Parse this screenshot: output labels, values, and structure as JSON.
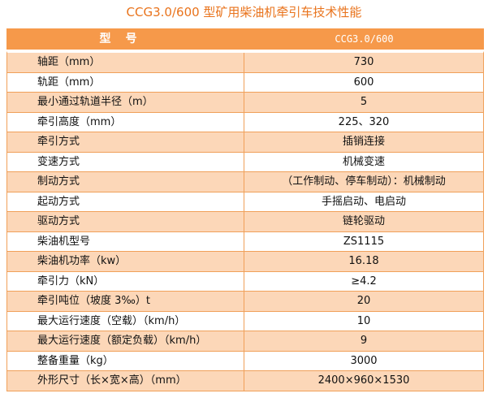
{
  "title": "CCG3.0/600 型矿用柴油机牵引车技术性能",
  "header": {
    "label": "型号",
    "value": "CCG3.0/600"
  },
  "colors": {
    "title": "#e9731c",
    "header_bg": "#f6994a",
    "row_alt": "#fcd7b8",
    "border": "#f0a059"
  },
  "rows": [
    {
      "label": "轴距（mm）",
      "value": "730"
    },
    {
      "label": "轨距（mm）",
      "value": "600"
    },
    {
      "label": "最小通过轨道半径（m）",
      "value": "5"
    },
    {
      "label": "牵引高度（mm）",
      "value": "225、320"
    },
    {
      "label": "牵引方式",
      "value": "插销连接"
    },
    {
      "label": "变速方式",
      "value": "机械变速"
    },
    {
      "label": "制动方式",
      "value": "（工作制动、停车制动）：机械制动"
    },
    {
      "label": "起动方式",
      "value": "手摇启动、电启动"
    },
    {
      "label": "驱动方式",
      "value": "链轮驱动"
    },
    {
      "label": "柴油机型号",
      "value": "ZS1115"
    },
    {
      "label": "柴油机功率（kw）",
      "value": "16.18"
    },
    {
      "label": "牵引力（kN）",
      "value": "≥4.2"
    },
    {
      "label": "牵引吨位（坡度 3‰）t",
      "value": "20"
    },
    {
      "label": "最大运行速度（空载）（km/h）",
      "value": "10"
    },
    {
      "label": "最大运行速度（额定负载）（km/h）",
      "value": "9"
    },
    {
      "label": "整备重量（kg）",
      "value": "3000"
    },
    {
      "label": "外形尺寸（长×宽×高）（mm）",
      "value": "2400×960×1530"
    }
  ]
}
